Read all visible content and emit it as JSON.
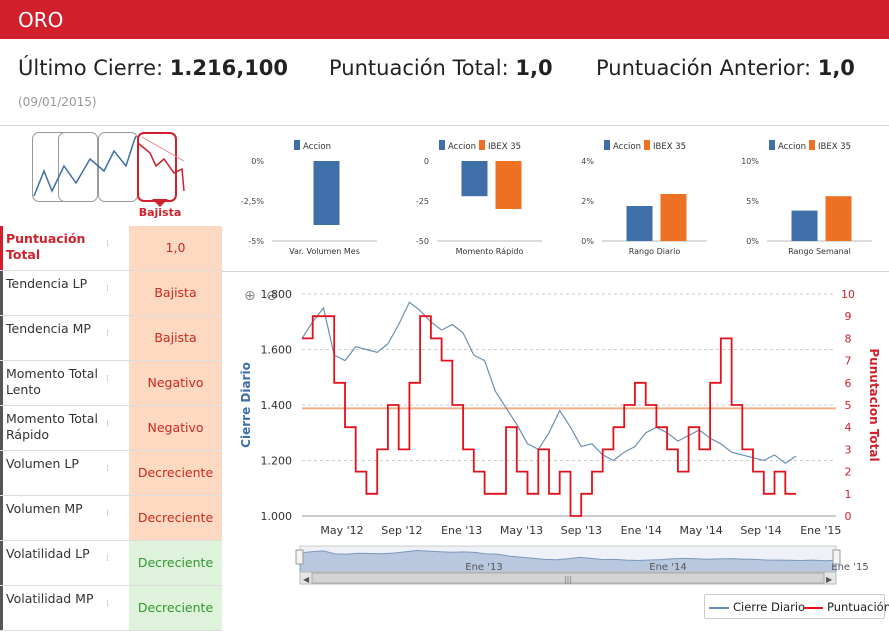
{
  "header": {
    "title": "ORO"
  },
  "summary": {
    "ultimo_label": "Último Cierre:",
    "ultimo_value": "1.216,100",
    "total_label": "Puntuación Total:",
    "total_value": "1,0",
    "anterior_label": "Puntuación Anterior:",
    "anterior_value": "1,0",
    "date": "(09/01/2015)"
  },
  "trend": {
    "selected_label": "Bajista"
  },
  "indicators": [
    {
      "label": "Puntuación Total",
      "value": "1,0",
      "kind": "neutral"
    },
    {
      "label": "Tendencia LP",
      "value": "Bajista",
      "kind": "neg"
    },
    {
      "label": "Tendencia MP",
      "value": "Bajista",
      "kind": "neg"
    },
    {
      "label": "Momento Total Lento",
      "value": "Negativo",
      "kind": "neg"
    },
    {
      "label": "Momento Total Rápido",
      "value": "Negativo",
      "kind": "neg"
    },
    {
      "label": "Volumen LP",
      "value": "Decreciente",
      "kind": "neg"
    },
    {
      "label": "Volumen MP",
      "value": "Decreciente",
      "kind": "neg"
    },
    {
      "label": "Volatilidad LP",
      "value": "Decreciente",
      "kind": "pos"
    },
    {
      "label": "Volatilidad MP",
      "value": "Decreciente",
      "kind": "pos"
    }
  ],
  "colors": {
    "brand": "#d1202b",
    "accion": "#3f6fa8",
    "ibex": "#ed7122",
    "cierre": "#6a8fb5",
    "puntuacion": "#e4101c"
  },
  "chart_data": [
    {
      "type": "bar",
      "categories": [
        "Var. Volumen Mes"
      ],
      "series": [
        {
          "name": "Accion",
          "values": [
            -4.0
          ]
        }
      ],
      "ylim": [
        -5,
        0
      ],
      "yticks": [
        "0%",
        "-2,5%",
        "-5%"
      ]
    },
    {
      "type": "bar",
      "categories": [
        "Momento Rápido"
      ],
      "series": [
        {
          "name": "Accion",
          "values": [
            -22
          ]
        },
        {
          "name": "IBEX 35",
          "values": [
            -30
          ]
        }
      ],
      "ylim": [
        -50,
        0
      ],
      "yticks": [
        "0",
        "-25",
        "-50"
      ]
    },
    {
      "type": "bar",
      "categories": [
        "Rango Diario"
      ],
      "series": [
        {
          "name": "Accion",
          "values": [
            1.75
          ]
        },
        {
          "name": "IBEX 35",
          "values": [
            2.35
          ]
        }
      ],
      "ylim": [
        0,
        4
      ],
      "yticks": [
        "4%",
        "2%",
        "0%"
      ]
    },
    {
      "type": "bar",
      "categories": [
        "Rango Semanal"
      ],
      "series": [
        {
          "name": "Accion",
          "values": [
            3.8
          ]
        },
        {
          "name": "IBEX 35",
          "values": [
            5.6
          ]
        }
      ],
      "ylim": [
        0,
        10
      ],
      "yticks": [
        "10%",
        "5%",
        "0%"
      ]
    },
    {
      "type": "line",
      "xlabels": [
        "May '12",
        "Sep '12",
        "Ene '13",
        "May '13",
        "Sep '13",
        "Ene '14",
        "May '14",
        "Sep '14",
        "Ene '15"
      ],
      "ylabel": "Cierre Diario",
      "y2label": "Punutacion Total",
      "yticks": [
        "1.000",
        "1.200",
        "1.400",
        "1.600",
        "1.800"
      ],
      "y2ticks": [
        "0",
        "1",
        "2",
        "3",
        "4",
        "5",
        "6",
        "7",
        "8",
        "9",
        "10"
      ],
      "ylim": [
        1000,
        1800
      ],
      "y2lim": [
        0,
        10
      ],
      "reference_line": 1.0,
      "series": [
        {
          "name": "Cierre Diario",
          "axis": "left",
          "values": [
            1640,
            1700,
            1750,
            1580,
            1560,
            1610,
            1600,
            1590,
            1620,
            1690,
            1770,
            1740,
            1700,
            1670,
            1690,
            1660,
            1580,
            1560,
            1450,
            1390,
            1330,
            1260,
            1240,
            1300,
            1380,
            1320,
            1250,
            1260,
            1220,
            1200,
            1230,
            1250,
            1300,
            1320,
            1300,
            1270,
            1290,
            1310,
            1280,
            1260,
            1230,
            1220,
            1210,
            1200,
            1220,
            1190,
            1216
          ]
        },
        {
          "name": "Puntuación",
          "axis": "right",
          "values": [
            8,
            9,
            9,
            6,
            4,
            2,
            1,
            3,
            5,
            3,
            6,
            9,
            8,
            7,
            5,
            3,
            2,
            1,
            1,
            4,
            2,
            1,
            3,
            1,
            2,
            0,
            1,
            2,
            3,
            4,
            5,
            6,
            5,
            4,
            3,
            2,
            4,
            3,
            6,
            8,
            5,
            3,
            2,
            1,
            2,
            1,
            1
          ]
        }
      ],
      "legend": "bottom-right",
      "navigator": {
        "labels": [
          "Ene '13",
          "Ene '14",
          "Ene '15"
        ]
      }
    }
  ],
  "legend": {
    "cierre_label": "Cierre Diario",
    "puntuacion_label": "Puntuación"
  }
}
